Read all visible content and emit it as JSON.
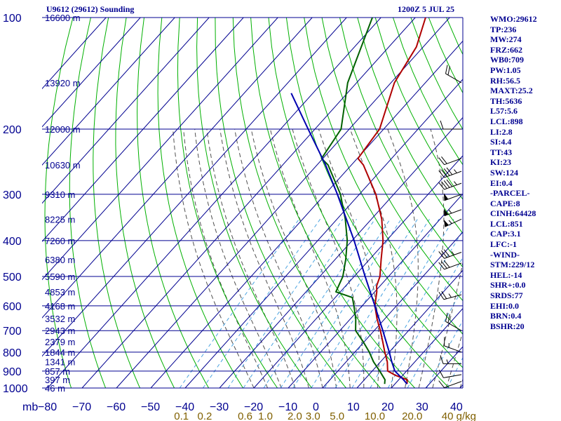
{
  "header": {
    "station": "U9612 (29612) Sounding",
    "time": "1200Z  5 JUL 25"
  },
  "indices": [
    "WMO:29612",
    "TP:236",
    "MW:274",
    "FRZ:662",
    "WB0:709",
    "PW:1.05",
    "RH:56.5",
    "MAXT:25.2",
    "TH:5636",
    "L57:5.6",
    "LCL:898",
    "LI:2.8",
    "SI:4.4",
    "TT:43",
    "KI:23",
    "SW:124",
    "EI:0.4",
    "-PARCEL-",
    "CAPE:8",
    "CINH:64428",
    "LCL:851",
    "CAP:3.1",
    "LFC:-1",
    "-WIND-",
    "STM:229/12",
    "HEL:-14",
    "SHR+:0.0",
    "SRDS:77",
    "EHI:0.0",
    "BRN:0.4",
    "BSHR:20"
  ],
  "chart_data": {
    "type": "line",
    "title": "U9612 (29612) Sounding",
    "xlabel": "",
    "ylabel": "mb",
    "x_unit_label": "mb",
    "y_scale": "log",
    "ylim": [
      1000,
      100
    ],
    "xlim": [
      -80,
      40
    ],
    "pressure_ticks": [
      100,
      200,
      300,
      400,
      500,
      600,
      700,
      800,
      900,
      1000
    ],
    "temperature_ticks": [
      -80,
      -70,
      -60,
      -50,
      -40,
      -30,
      -20,
      -10,
      0,
      10,
      20,
      30,
      40
    ],
    "mixing_ratio_ticks": [
      {
        "label": "0.1",
        "value": 0.1
      },
      {
        "label": "0.2",
        "value": 0.2
      },
      {
        "label": "0.6",
        "value": 0.6
      },
      {
        "label": "1.0",
        "value": 1.0
      },
      {
        "label": "2.0",
        "value": 2.0
      },
      {
        "label": "3.0",
        "value": 3.0
      },
      {
        "label": "5.0",
        "value": 5.0
      },
      {
        "label": "10.0",
        "value": 10.0
      },
      {
        "label": "20.0",
        "value": 20.0
      },
      {
        "label": "40 g/kg",
        "value": 40.0
      }
    ],
    "height_labels": [
      {
        "label": "16600 m",
        "p": 100
      },
      {
        "label": "13920 m",
        "p": 150
      },
      {
        "label": "12000 m",
        "p": 200
      },
      {
        "label": "10630 m",
        "p": 250
      },
      {
        "label": "9310 m",
        "p": 300
      },
      {
        "label": "8225 m",
        "p": 350
      },
      {
        "label": "7260 m",
        "p": 400
      },
      {
        "label": "6380 m",
        "p": 450
      },
      {
        "label": "5590 m",
        "p": 500
      },
      {
        "label": "4853 m",
        "p": 550
      },
      {
        "label": "4168 m",
        "p": 600
      },
      {
        "label": "3532 m",
        "p": 650
      },
      {
        "label": "2943 m",
        "p": 700
      },
      {
        "label": "2379 m",
        "p": 750
      },
      {
        "label": "1844 m",
        "p": 800
      },
      {
        "label": "1341 m",
        "p": 850
      },
      {
        "label": "857 m",
        "p": 900
      },
      {
        "label": "397 m",
        "p": 950
      },
      {
        "label": "46 m",
        "p": 1000
      }
    ],
    "series": [
      {
        "name": "",
        "color": "#b00000",
        "points": [
          [
            975,
            23.5
          ],
          [
            950,
            22.5
          ],
          [
            925,
            18.0
          ],
          [
            900,
            14.5
          ],
          [
            850,
            12.0
          ],
          [
            800,
            8.7
          ],
          [
            750,
            5.4
          ],
          [
            700,
            1.8
          ],
          [
            650,
            -2.3
          ],
          [
            600,
            -6.3
          ],
          [
            550,
            -9.4
          ],
          [
            530,
            -11.0
          ],
          [
            500,
            -12.5
          ],
          [
            450,
            -16.6
          ],
          [
            400,
            -21.0
          ],
          [
            350,
            -27.0
          ],
          [
            300,
            -35.2
          ],
          [
            250,
            -46.5
          ],
          [
            240,
            -49.8
          ],
          [
            200,
            -51.2
          ],
          [
            150,
            -59.0
          ],
          [
            120,
            -62.0
          ],
          [
            100,
            -67.0
          ]
        ]
      },
      {
        "name": "",
        "color": "#006000",
        "points": [
          [
            975,
            17.0
          ],
          [
            950,
            16.0
          ],
          [
            900,
            12.2
          ],
          [
            850,
            8.0
          ],
          [
            800,
            4.2
          ],
          [
            750,
            -0.3
          ],
          [
            700,
            -5.4
          ],
          [
            650,
            -8.5
          ],
          [
            600,
            -12.4
          ],
          [
            570,
            -15.0
          ],
          [
            550,
            -21.3
          ],
          [
            500,
            -23.3
          ],
          [
            450,
            -26.9
          ],
          [
            400,
            -31.4
          ],
          [
            350,
            -37.6
          ],
          [
            300,
            -45.5
          ],
          [
            250,
            -56.8
          ],
          [
            240,
            -60.4
          ],
          [
            200,
            -62.4
          ],
          [
            150,
            -72.6
          ],
          [
            100,
            -82.5
          ]
        ]
      },
      {
        "name": "",
        "color": "#0000b0",
        "points": [
          [
            975,
            23.5
          ],
          [
            950,
            21.4
          ],
          [
            900,
            16.6
          ],
          [
            850,
            13.3
          ],
          [
            800,
            10.0
          ],
          [
            700,
            2.5
          ],
          [
            600,
            -6.3
          ],
          [
            500,
            -16.8
          ],
          [
            400,
            -29.4
          ],
          [
            300,
            -46.4
          ],
          [
            250,
            -57.5
          ],
          [
            200,
            -72.0
          ],
          [
            160,
            -86.3
          ]
        ]
      }
    ],
    "wind_barbs": [
      {
        "p": 150,
        "dir": 300,
        "speed": 20
      },
      {
        "p": 200,
        "dir": 270,
        "speed": 10
      },
      {
        "p": 240,
        "dir": 250,
        "speed": 20
      },
      {
        "p": 260,
        "dir": 250,
        "speed": 45
      },
      {
        "p": 280,
        "dir": 250,
        "speed": 45
      },
      {
        "p": 300,
        "dir": 250,
        "speed": 50
      },
      {
        "p": 330,
        "dir": 250,
        "speed": 55
      },
      {
        "p": 350,
        "dir": 245,
        "speed": 55
      },
      {
        "p": 430,
        "dir": 250,
        "speed": 35
      },
      {
        "p": 460,
        "dir": 250,
        "speed": 30
      },
      {
        "p": 560,
        "dir": 255,
        "speed": 25
      },
      {
        "p": 700,
        "dir": 300,
        "speed": 20
      },
      {
        "p": 800,
        "dir": 290,
        "speed": 15
      },
      {
        "p": 860,
        "dir": 270,
        "speed": 15
      },
      {
        "p": 920,
        "dir": 260,
        "speed": 10
      },
      {
        "p": 960,
        "dir": 250,
        "speed": 10
      }
    ],
    "grid": true,
    "colors": {
      "isobar": "#000090",
      "isotherm": "#000090",
      "dry_adiabat": "#00b000",
      "moist_adiabat": "#505050",
      "mixing_ratio": "#4aa3e0",
      "text": "#000090",
      "mixing_label": "#806000"
    }
  }
}
